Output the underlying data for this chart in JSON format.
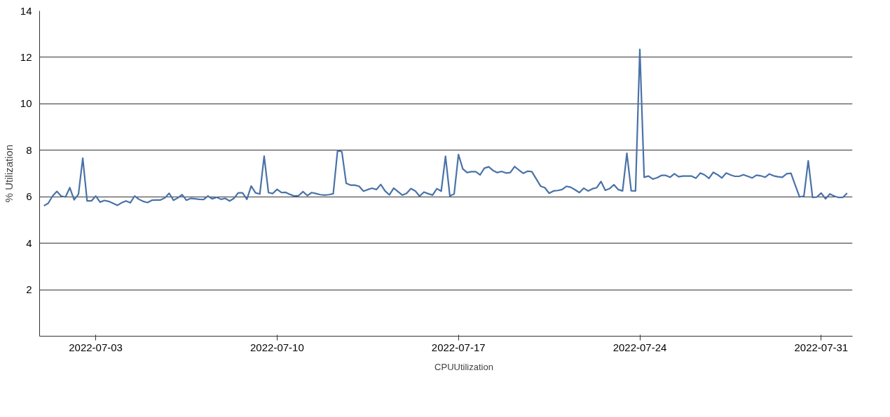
{
  "chart_data": {
    "type": "line",
    "ylabel": "% Utilization",
    "x": [
      "2022-07-01T00:00",
      "2022-07-01T04:00",
      "2022-07-01T08:00",
      "2022-07-01T12:00",
      "2022-07-01T16:00",
      "2022-07-01T20:00",
      "2022-07-02T00:00",
      "2022-07-02T04:00",
      "2022-07-02T08:00",
      "2022-07-02T12:00",
      "2022-07-02T16:00",
      "2022-07-02T20:00",
      "2022-07-03T00:00",
      "2022-07-03T04:00",
      "2022-07-03T08:00",
      "2022-07-03T12:00",
      "2022-07-03T16:00",
      "2022-07-03T20:00",
      "2022-07-04T00:00",
      "2022-07-04T04:00",
      "2022-07-04T08:00",
      "2022-07-04T12:00",
      "2022-07-04T16:00",
      "2022-07-04T20:00",
      "2022-07-05T00:00",
      "2022-07-05T04:00",
      "2022-07-05T08:00",
      "2022-07-05T12:00",
      "2022-07-05T16:00",
      "2022-07-05T20:00",
      "2022-07-06T00:00",
      "2022-07-06T04:00",
      "2022-07-06T08:00",
      "2022-07-06T12:00",
      "2022-07-06T16:00",
      "2022-07-06T20:00",
      "2022-07-07T00:00",
      "2022-07-07T04:00",
      "2022-07-07T08:00",
      "2022-07-07T12:00",
      "2022-07-07T16:00",
      "2022-07-07T20:00",
      "2022-07-08T00:00",
      "2022-07-08T04:00",
      "2022-07-08T08:00",
      "2022-07-08T12:00",
      "2022-07-08T16:00",
      "2022-07-08T20:00",
      "2022-07-09T00:00",
      "2022-07-09T04:00",
      "2022-07-09T08:00",
      "2022-07-09T12:00",
      "2022-07-09T16:00",
      "2022-07-09T20:00",
      "2022-07-10T00:00",
      "2022-07-10T04:00",
      "2022-07-10T08:00",
      "2022-07-10T12:00",
      "2022-07-10T16:00",
      "2022-07-10T20:00",
      "2022-07-11T00:00",
      "2022-07-11T04:00",
      "2022-07-11T08:00",
      "2022-07-11T12:00",
      "2022-07-11T16:00",
      "2022-07-11T20:00",
      "2022-07-12T00:00",
      "2022-07-12T04:00",
      "2022-07-12T08:00",
      "2022-07-12T12:00",
      "2022-07-12T16:00",
      "2022-07-12T20:00",
      "2022-07-13T00:00",
      "2022-07-13T04:00",
      "2022-07-13T08:00",
      "2022-07-13T12:00",
      "2022-07-13T16:00",
      "2022-07-13T20:00",
      "2022-07-14T00:00",
      "2022-07-14T04:00",
      "2022-07-14T08:00",
      "2022-07-14T12:00",
      "2022-07-14T16:00",
      "2022-07-14T20:00",
      "2022-07-15T00:00",
      "2022-07-15T04:00",
      "2022-07-15T08:00",
      "2022-07-15T12:00",
      "2022-07-15T16:00",
      "2022-07-15T20:00",
      "2022-07-16T00:00",
      "2022-07-16T04:00",
      "2022-07-16T08:00",
      "2022-07-16T12:00",
      "2022-07-16T16:00",
      "2022-07-16T20:00",
      "2022-07-17T00:00",
      "2022-07-17T04:00",
      "2022-07-17T08:00",
      "2022-07-17T12:00",
      "2022-07-17T16:00",
      "2022-07-17T20:00",
      "2022-07-18T00:00",
      "2022-07-18T04:00",
      "2022-07-18T08:00",
      "2022-07-18T12:00",
      "2022-07-18T16:00",
      "2022-07-18T20:00",
      "2022-07-19T00:00",
      "2022-07-19T04:00",
      "2022-07-19T08:00",
      "2022-07-19T12:00",
      "2022-07-19T16:00",
      "2022-07-19T20:00",
      "2022-07-20T00:00",
      "2022-07-20T04:00",
      "2022-07-20T08:00",
      "2022-07-20T12:00",
      "2022-07-20T16:00",
      "2022-07-20T20:00",
      "2022-07-21T00:00",
      "2022-07-21T04:00",
      "2022-07-21T08:00",
      "2022-07-21T12:00",
      "2022-07-21T16:00",
      "2022-07-21T20:00",
      "2022-07-22T00:00",
      "2022-07-22T04:00",
      "2022-07-22T08:00",
      "2022-07-22T12:00",
      "2022-07-22T16:00",
      "2022-07-22T20:00",
      "2022-07-23T00:00",
      "2022-07-23T04:00",
      "2022-07-23T08:00",
      "2022-07-23T12:00",
      "2022-07-23T16:00",
      "2022-07-23T20:00",
      "2022-07-24T00:00",
      "2022-07-24T04:00",
      "2022-07-24T08:00",
      "2022-07-24T12:00",
      "2022-07-24T16:00",
      "2022-07-24T20:00",
      "2022-07-25T00:00",
      "2022-07-25T04:00",
      "2022-07-25T08:00",
      "2022-07-25T12:00",
      "2022-07-25T16:00",
      "2022-07-25T20:00",
      "2022-07-26T00:00",
      "2022-07-26T04:00",
      "2022-07-26T08:00",
      "2022-07-26T12:00",
      "2022-07-26T16:00",
      "2022-07-26T20:00",
      "2022-07-27T00:00",
      "2022-07-27T04:00",
      "2022-07-27T08:00",
      "2022-07-27T12:00",
      "2022-07-27T16:00",
      "2022-07-27T20:00",
      "2022-07-28T00:00",
      "2022-07-28T04:00",
      "2022-07-28T08:00",
      "2022-07-28T12:00",
      "2022-07-28T16:00",
      "2022-07-28T20:00",
      "2022-07-29T00:00",
      "2022-07-29T04:00",
      "2022-07-29T08:00",
      "2022-07-29T12:00",
      "2022-07-29T16:00",
      "2022-07-29T20:00",
      "2022-07-30T00:00",
      "2022-07-30T04:00",
      "2022-07-30T08:00",
      "2022-07-30T12:00",
      "2022-07-30T16:00",
      "2022-07-30T20:00",
      "2022-07-31T00:00",
      "2022-07-31T04:00",
      "2022-07-31T08:00",
      "2022-07-31T12:00",
      "2022-07-31T16:00",
      "2022-07-31T20:00",
      "2022-08-01T00:00"
    ],
    "xlim": [
      "2022-06-30T20:00",
      "2022-08-01T05:00"
    ],
    "xticks": [
      "2022-07-03",
      "2022-07-10",
      "2022-07-17",
      "2022-07-24",
      "2022-07-31"
    ],
    "ylim": [
      0,
      14
    ],
    "yticks": [
      2,
      4,
      6,
      8,
      10,
      12,
      14
    ],
    "grid": "y",
    "legend": "bottom",
    "marker": "none",
    "line_style": "solid",
    "series": [
      {
        "name": "CPUUtilization",
        "color": "#4a72a8",
        "values": [
          5.61,
          5.72,
          6.03,
          6.23,
          6.03,
          5.99,
          6.39,
          5.87,
          6.11,
          7.66,
          5.82,
          5.82,
          6.03,
          5.77,
          5.84,
          5.8,
          5.72,
          5.63,
          5.74,
          5.82,
          5.74,
          6.03,
          5.89,
          5.8,
          5.75,
          5.85,
          5.86,
          5.86,
          5.95,
          6.15,
          5.85,
          5.95,
          6.09,
          5.85,
          5.93,
          5.91,
          5.89,
          5.88,
          6.03,
          5.91,
          5.98,
          5.89,
          5.93,
          5.82,
          5.93,
          6.17,
          6.17,
          5.89,
          6.46,
          6.17,
          6.12,
          7.75,
          6.18,
          6.14,
          6.32,
          6.18,
          6.19,
          6.1,
          6.03,
          6.05,
          6.22,
          6.05,
          6.18,
          6.14,
          6.09,
          6.07,
          6.09,
          6.13,
          7.98,
          7.94,
          6.58,
          6.5,
          6.5,
          6.45,
          6.24,
          6.31,
          6.37,
          6.31,
          6.53,
          6.25,
          6.08,
          6.37,
          6.22,
          6.07,
          6.15,
          6.35,
          6.25,
          6.02,
          6.2,
          6.13,
          6.07,
          6.35,
          6.24,
          7.74,
          6.04,
          6.12,
          7.82,
          7.2,
          7.04,
          7.08,
          7.08,
          6.94,
          7.23,
          7.29,
          7.13,
          7.04,
          7.09,
          7.02,
          7.04,
          7.3,
          7.15,
          7.01,
          7.1,
          7.08,
          6.77,
          6.46,
          6.39,
          6.15,
          6.25,
          6.27,
          6.31,
          6.45,
          6.41,
          6.3,
          6.18,
          6.37,
          6.25,
          6.34,
          6.39,
          6.66,
          6.28,
          6.35,
          6.52,
          6.31,
          6.25,
          7.87,
          6.26,
          6.25,
          12.34,
          6.84,
          6.89,
          6.76,
          6.82,
          6.92,
          6.92,
          6.84,
          6.99,
          6.86,
          6.89,
          6.89,
          6.89,
          6.8,
          7.02,
          6.94,
          6.79,
          7.05,
          6.95,
          6.81,
          7.02,
          6.94,
          6.88,
          6.88,
          6.95,
          6.88,
          6.81,
          6.93,
          6.9,
          6.84,
          6.98,
          6.9,
          6.86,
          6.84,
          6.99,
          7.01,
          6.49,
          5.99,
          6.03,
          7.55,
          5.97,
          5.99,
          6.16,
          5.91,
          6.12,
          6.03,
          5.97,
          5.97,
          6.16
        ]
      }
    ]
  }
}
